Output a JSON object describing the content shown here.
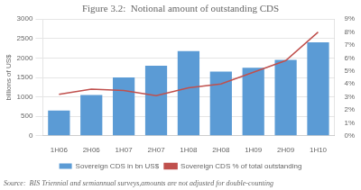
{
  "chart_data": {
    "type": "bar",
    "title": "Figure 3.2:  Notional amount of outstanding CDS",
    "categories": [
      "1H06",
      "2H06",
      "1H07",
      "2H07",
      "1H08",
      "2H08",
      "1H09",
      "2H09",
      "1H10"
    ],
    "series": [
      {
        "name": "Sovereign CDS in bn US$",
        "type": "bar",
        "color": "#5B9BD5",
        "values": [
          650,
          1050,
          1500,
          1800,
          2175,
          1650,
          1750,
          1950,
          2400
        ]
      },
      {
        "name": "Sovereign CDS % of total outstanding",
        "type": "line",
        "axis": "y2",
        "color": "#C0504D",
        "values": [
          3.2,
          3.6,
          3.5,
          3.1,
          3.7,
          4.0,
          4.9,
          5.8,
          8.0
        ]
      }
    ],
    "ylabel": "billions of US$",
    "ylim": [
      0,
      3000
    ],
    "yticks": [
      0,
      500,
      1000,
      1500,
      2000,
      2500,
      3000
    ],
    "y2lim": [
      0,
      9
    ],
    "y2ticks": [
      {
        "value": 0,
        "label": "0%"
      },
      {
        "value": 1,
        "label": "1%"
      },
      {
        "value": 2,
        "label": "2%"
      },
      {
        "value": 3,
        "label": "3%"
      },
      {
        "value": 4,
        "label": "4%"
      },
      {
        "value": 5,
        "label": "5%"
      },
      {
        "value": 6,
        "label": "6%"
      },
      {
        "value": 7,
        "label": "7%"
      },
      {
        "value": 8,
        "label": "8%"
      },
      {
        "value": 9,
        "label": "9%"
      }
    ],
    "grid": true,
    "legend": "bottom",
    "annotations": [
      "Source:  BIS Triennial and semiannual surveys,amounts are not adjusted for double-counting"
    ]
  }
}
